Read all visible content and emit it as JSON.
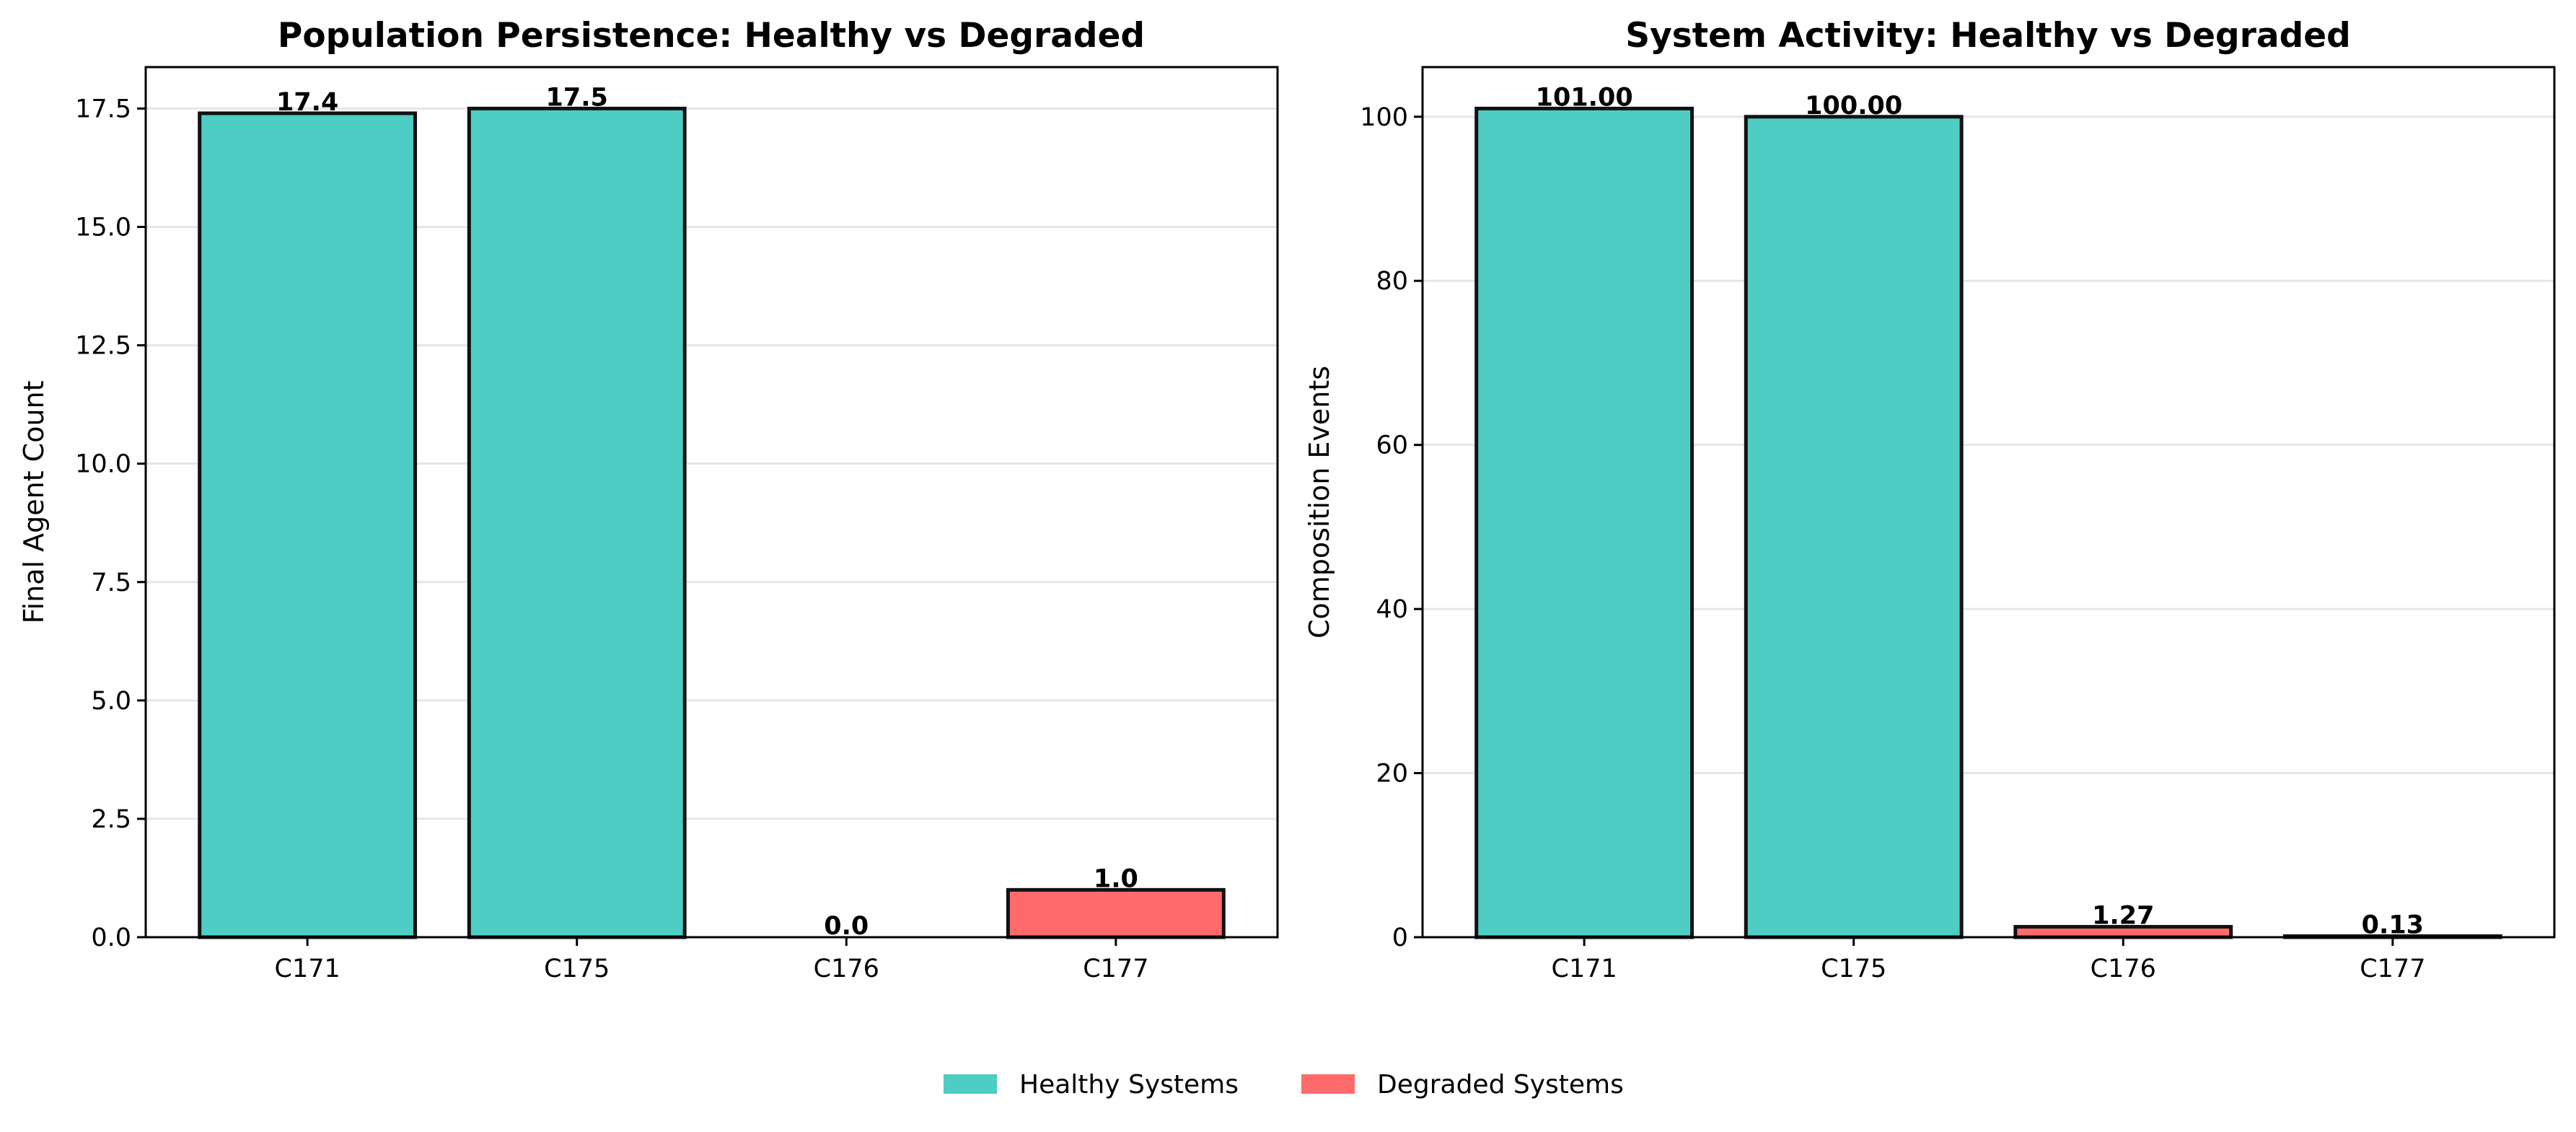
{
  "chart_data": [
    {
      "type": "bar",
      "title": "Population Persistence: Healthy vs Degraded",
      "xlabel": "",
      "ylabel": "Final Agent Count",
      "categories": [
        "C171",
        "C175",
        "C176",
        "C177"
      ],
      "values": [
        17.4,
        17.5,
        0.0,
        1.0
      ],
      "value_labels": [
        "17.4",
        "17.5",
        "0.0",
        "1.0"
      ],
      "groups": [
        "healthy",
        "healthy",
        "degraded",
        "degraded"
      ],
      "ylim": [
        0,
        18.375
      ],
      "yticks": [
        0,
        2.5,
        5,
        7.5,
        10,
        12.5,
        15,
        17.5
      ],
      "ytick_labels": [
        "0.0",
        "2.5",
        "5.0",
        "7.5",
        "10.0",
        "12.5",
        "15.0",
        "17.5"
      ],
      "grid": "y"
    },
    {
      "type": "bar",
      "title": "System Activity: Healthy vs Degraded",
      "xlabel": "",
      "ylabel": "Composition Events",
      "categories": [
        "C171",
        "C175",
        "C176",
        "C177"
      ],
      "values": [
        101.0,
        100.0,
        1.27,
        0.13
      ],
      "value_labels": [
        "101.00",
        "100.00",
        "1.27",
        "0.13"
      ],
      "groups": [
        "healthy",
        "healthy",
        "degraded",
        "degraded"
      ],
      "ylim": [
        0,
        106.05
      ],
      "yticks": [
        0,
        20,
        40,
        60,
        80,
        100
      ],
      "ytick_labels": [
        "0",
        "20",
        "40",
        "60",
        "80",
        "100"
      ],
      "grid": "y"
    }
  ],
  "legend": {
    "placement": "bottom-center",
    "items": [
      {
        "key": "healthy",
        "label": "Healthy Systems",
        "color": "#4ECDC4"
      },
      {
        "key": "degraded",
        "label": "Degraded Systems",
        "color": "#FF6B6B"
      }
    ]
  },
  "colors": {
    "healthy": "#4ECDC4",
    "degraded": "#FF6B6B",
    "bar_edge": "#111111",
    "grid": "#e6e6e6"
  }
}
